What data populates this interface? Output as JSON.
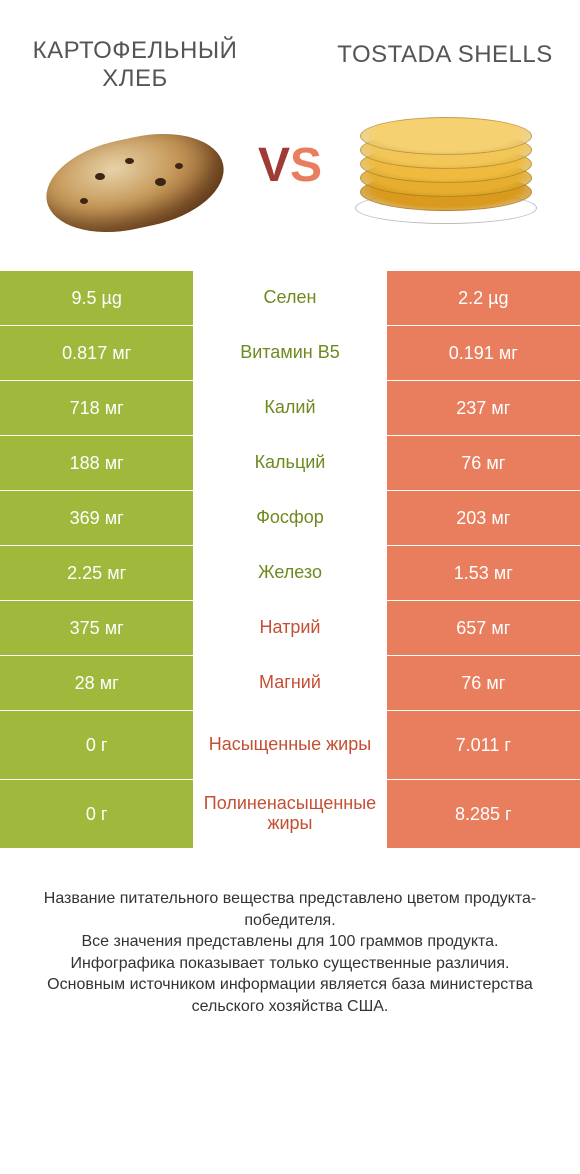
{
  "header": {
    "left_title": "КАРТОФЕЛЬНЫЙ ХЛЕБ",
    "right_title": "TOSTADA SHELLS",
    "vs_v": "V",
    "vs_s": "S"
  },
  "colors": {
    "green": "#9eb93b",
    "orange": "#e97e5e",
    "green_text": "#6e8a1f",
    "orange_text": "#c54f33",
    "bg": "#ffffff"
  },
  "rows": [
    {
      "left": "9.5 µg",
      "mid": "Селен",
      "right": "2.2 µg",
      "winner": "left",
      "tall": false
    },
    {
      "left": "0.817 мг",
      "mid": "Витамин B5",
      "right": "0.191 мг",
      "winner": "left",
      "tall": false
    },
    {
      "left": "718 мг",
      "mid": "Калий",
      "right": "237 мг",
      "winner": "left",
      "tall": false
    },
    {
      "left": "188 мг",
      "mid": "Кальций",
      "right": "76 мг",
      "winner": "left",
      "tall": false
    },
    {
      "left": "369 мг",
      "mid": "Фосфор",
      "right": "203 мг",
      "winner": "left",
      "tall": false
    },
    {
      "left": "2.25 мг",
      "mid": "Железо",
      "right": "1.53 мг",
      "winner": "left",
      "tall": false
    },
    {
      "left": "375 мг",
      "mid": "Натрий",
      "right": "657 мг",
      "winner": "right",
      "tall": false
    },
    {
      "left": "28 мг",
      "mid": "Магний",
      "right": "76 мг",
      "winner": "right",
      "tall": false
    },
    {
      "left": "0 г",
      "mid": "Насыщенные жиры",
      "right": "7.011 г",
      "winner": "right",
      "tall": true
    },
    {
      "left": "0 г",
      "mid": "Полиненасыщенные жиры",
      "right": "8.285 г",
      "winner": "right",
      "tall": true
    }
  ],
  "footer": {
    "line1": "Название питательного вещества представлено цветом продукта-победителя.",
    "line2": "Все значения представлены для 100 граммов продукта.",
    "line3": "Инфографика показывает только существенные различия.",
    "line4": "Основным источником информации является база министерства сельского хозяйства США."
  },
  "shells": {
    "colors": [
      "#d99a1e",
      "#e6ad2e",
      "#eebb3f",
      "#f2c657",
      "#f5d172"
    ]
  }
}
